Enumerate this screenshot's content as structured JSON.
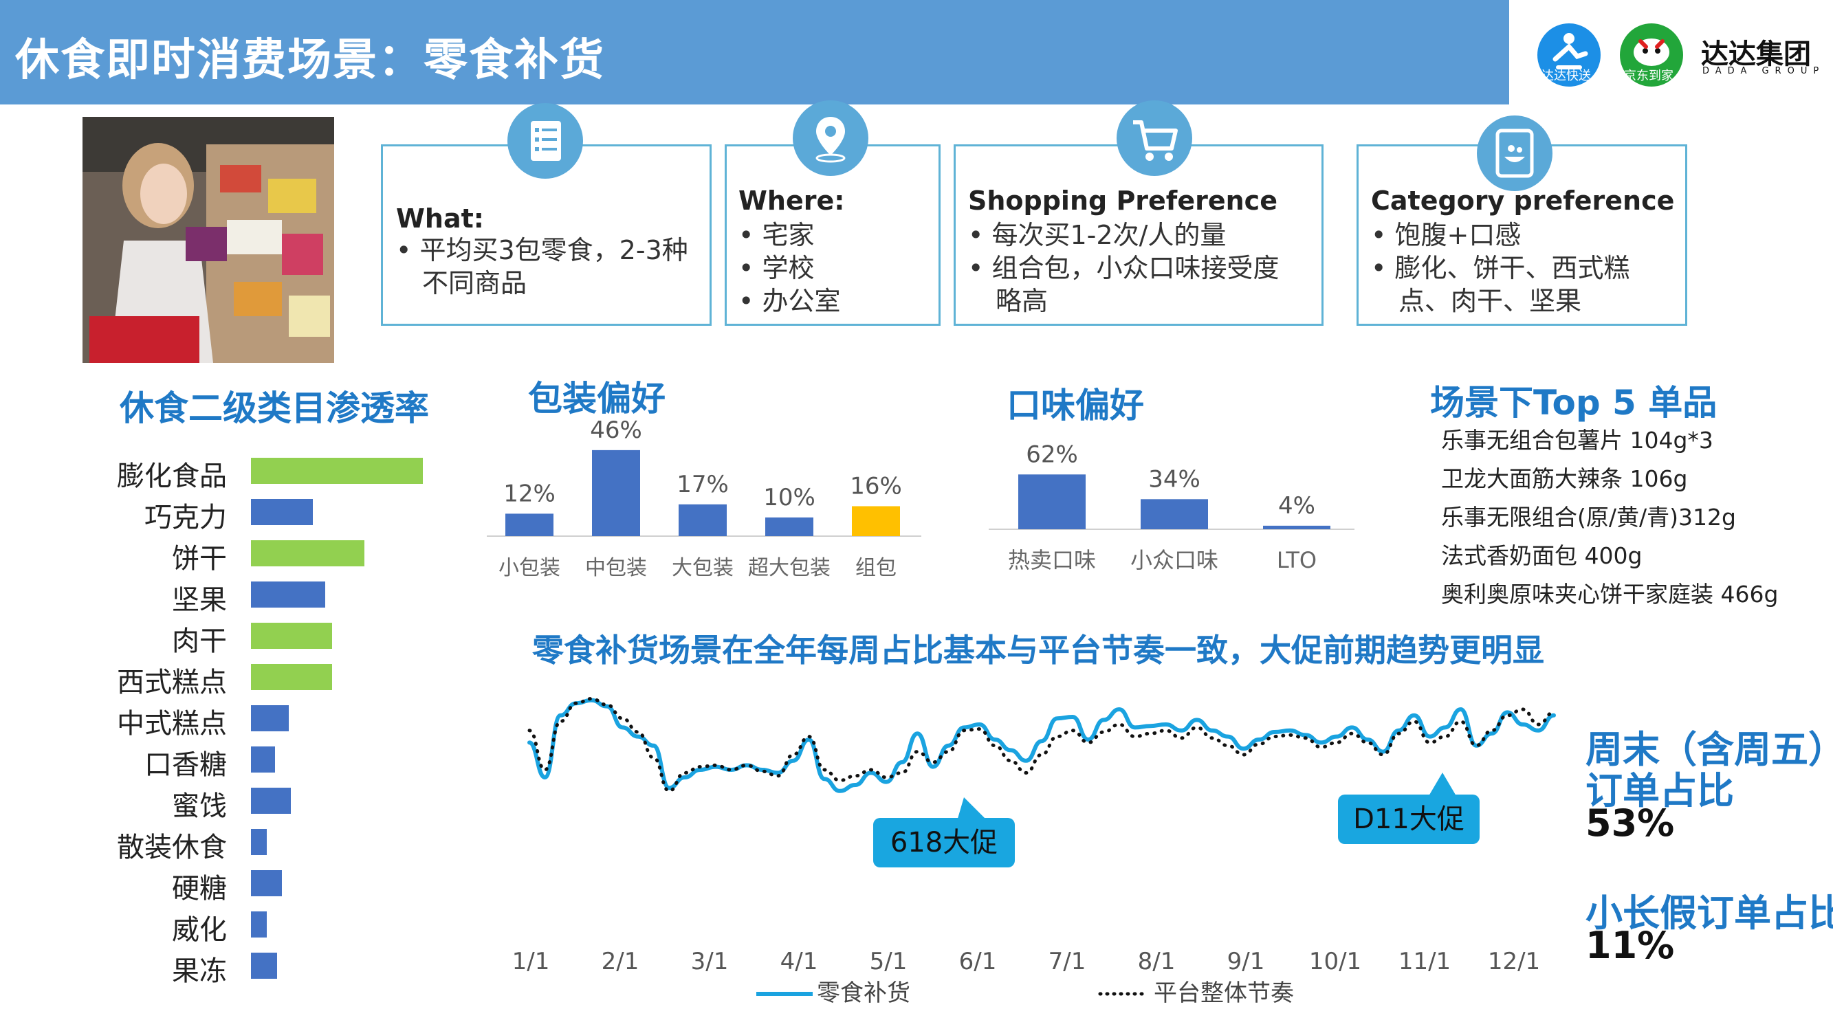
{
  "header": {
    "title": "休食即时消费场景：零食补货"
  },
  "logos": {
    "dada_express": "达达快送",
    "jd_daojia": "京东到家",
    "group_cn": "达达集团",
    "group_en": "DADA GROUP"
  },
  "cards": [
    {
      "title": "What:",
      "items": [
        "平均买3包零食，2-3种",
        "不同商品"
      ],
      "icon": "list-icon"
    },
    {
      "title": "Where:",
      "items": [
        "宅家",
        "学校",
        "办公室"
      ],
      "icon": "location-pin-icon"
    },
    {
      "title": "Shopping Preference",
      "items": [
        "每次买1-2次/人的量",
        "组合包，小众口味接受度",
        "略高"
      ],
      "icon": "shopping-cart-icon"
    },
    {
      "title": "Category preference",
      "items": [
        "饱腹+口感",
        "膨化、饼干、西式糕",
        "点、肉干、坚果"
      ],
      "icon": "phone-food-icon"
    }
  ],
  "penetration": {
    "title": "休食二级类目渗透率",
    "green": "#92d050",
    "blue": "#4472c4",
    "items": [
      {
        "label": "膨化食品",
        "value": 1.0,
        "color": "#92d050"
      },
      {
        "label": "巧克力",
        "value": 0.36,
        "color": "#4472c4"
      },
      {
        "label": "饼干",
        "value": 0.66,
        "color": "#92d050"
      },
      {
        "label": "坚果",
        "value": 0.43,
        "color": "#4472c4"
      },
      {
        "label": "肉干",
        "value": 0.47,
        "color": "#92d050"
      },
      {
        "label": "西式糕点",
        "value": 0.47,
        "color": "#92d050"
      },
      {
        "label": "中式糕点",
        "value": 0.22,
        "color": "#4472c4"
      },
      {
        "label": "口香糖",
        "value": 0.14,
        "color": "#4472c4"
      },
      {
        "label": "蜜饯",
        "value": 0.23,
        "color": "#4472c4"
      },
      {
        "label": "散装休食",
        "value": 0.09,
        "color": "#4472c4"
      },
      {
        "label": "硬糖",
        "value": 0.18,
        "color": "#4472c4"
      },
      {
        "label": "威化",
        "value": 0.09,
        "color": "#4472c4"
      },
      {
        "label": "果冻",
        "value": 0.15,
        "color": "#4472c4"
      }
    ]
  },
  "packaging": {
    "title": "包装偏好"
  },
  "flavor": {
    "title": "口味偏好"
  },
  "top5": {
    "title": "场景下Top 5 单品",
    "items": [
      "乐事无组合包薯片 104g*3",
      "卫龙大面筋大辣条 106g",
      "乐事无限组合(原/黄/青)312g",
      "法式香奶面包 400g",
      "奥利奥原味夹心饼干家庭装 466g"
    ]
  },
  "trend": {
    "title": "零食补货场景在全年每周占比基本与平台节奏一致，大促前期趋势更明显",
    "callouts": [
      "618大促",
      "D11大促"
    ]
  },
  "stats": {
    "weekend_label_1": "周末（含周五）",
    "weekend_label_2": "订单占比",
    "weekend_value": "53%",
    "holiday_label": "小长假订单占比",
    "holiday_value": "11%"
  },
  "chart_data": [
    {
      "type": "bar",
      "categories": [
        "小包装",
        "中包装",
        "大包装",
        "超大包装",
        "组包"
      ],
      "values": [
        12,
        46,
        17,
        10,
        16
      ],
      "data_labels": [
        "12%",
        "46%",
        "17%",
        "10%",
        "16%"
      ],
      "colors": [
        "#4472c4",
        "#4472c4",
        "#4472c4",
        "#4472c4",
        "#ffc000"
      ],
      "ylim": [
        0,
        50
      ]
    },
    {
      "type": "bar",
      "categories": [
        "热卖口味",
        "小众口味",
        "LTO"
      ],
      "values": [
        62,
        34,
        4
      ],
      "data_labels": [
        "62%",
        "34%",
        "4%"
      ],
      "colors": [
        "#4472c4",
        "#4472c4",
        "#4472c4"
      ],
      "ylim": [
        0,
        70
      ]
    },
    {
      "type": "line",
      "x_ticks": [
        "1/1",
        "2/1",
        "3/1",
        "4/1",
        "5/1",
        "6/1",
        "7/1",
        "8/1",
        "9/1",
        "10/1",
        "11/1",
        "12/1"
      ],
      "ylim": [
        0,
        1
      ],
      "series": [
        {
          "name": "零食补货",
          "color": "#1aa3e0",
          "style": "solid",
          "values": [
            0.68,
            0.45,
            0.86,
            0.94,
            0.96,
            0.92,
            0.78,
            0.72,
            0.66,
            0.38,
            0.45,
            0.5,
            0.52,
            0.5,
            0.53,
            0.5,
            0.48,
            0.56,
            0.7,
            0.44,
            0.36,
            0.4,
            0.48,
            0.42,
            0.55,
            0.74,
            0.52,
            0.66,
            0.78,
            0.8,
            0.7,
            0.63,
            0.56,
            0.69,
            0.84,
            0.85,
            0.7,
            0.83,
            0.9,
            0.78,
            0.79,
            0.8,
            0.76,
            0.83,
            0.76,
            0.72,
            0.64,
            0.7,
            0.75,
            0.76,
            0.73,
            0.68,
            0.72,
            0.78,
            0.7,
            0.62,
            0.76,
            0.86,
            0.72,
            0.78,
            0.9,
            0.66,
            0.74,
            0.88,
            0.8,
            0.76,
            0.86
          ]
        },
        {
          "name": "平台整体节奏",
          "color": "#111111",
          "style": "dotted",
          "values": [
            0.76,
            0.5,
            0.82,
            0.94,
            0.97,
            0.93,
            0.84,
            0.75,
            0.58,
            0.36,
            0.48,
            0.52,
            0.53,
            0.5,
            0.53,
            0.49,
            0.46,
            0.6,
            0.72,
            0.5,
            0.43,
            0.46,
            0.5,
            0.45,
            0.48,
            0.62,
            0.55,
            0.62,
            0.76,
            0.77,
            0.66,
            0.56,
            0.48,
            0.6,
            0.72,
            0.76,
            0.68,
            0.75,
            0.8,
            0.72,
            0.74,
            0.76,
            0.71,
            0.78,
            0.71,
            0.66,
            0.6,
            0.67,
            0.72,
            0.73,
            0.71,
            0.65,
            0.68,
            0.74,
            0.68,
            0.6,
            0.74,
            0.82,
            0.68,
            0.72,
            0.82,
            0.66,
            0.76,
            0.86,
            0.9,
            0.8,
            0.88
          ]
        }
      ]
    }
  ]
}
